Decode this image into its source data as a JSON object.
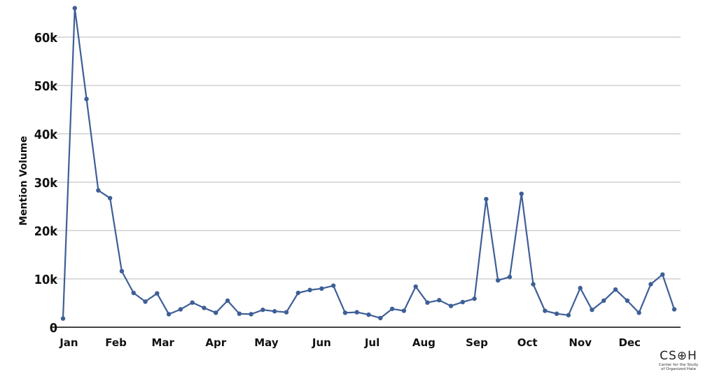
{
  "chart_data": {
    "type": "line",
    "title": "",
    "xlabel": "",
    "ylabel": "Mention Volume",
    "ylim": [
      0,
      66000
    ],
    "yticks": [
      0,
      10000,
      20000,
      30000,
      40000,
      50000,
      60000
    ],
    "ytick_labels": [
      "0",
      "10k",
      "20k",
      "30k",
      "40k",
      "50k",
      "60k"
    ],
    "xtick_labels": [
      "Jan",
      "Feb",
      "Mar",
      "Apr",
      "May",
      "Jun",
      "Jul",
      "Aug",
      "Sep",
      "Oct",
      "Nov",
      "Dec"
    ],
    "xtick_week_index": [
      0.5,
      4.5,
      8.5,
      13,
      17.3,
      22,
      26.3,
      30.7,
      35.2,
      39.5,
      44,
      48.2
    ],
    "grid": true,
    "legend": "none",
    "color": "#3e5f96",
    "series": [
      {
        "values": [
          1800,
          66000,
          47200,
          28300,
          26700,
          11600,
          7100,
          5300,
          7000,
          2700,
          3700,
          5100,
          4000,
          3000,
          5500,
          2800,
          2700,
          3600,
          3300,
          3100,
          7100,
          7700,
          8000,
          8600,
          3000,
          3100,
          2600,
          1900,
          3800,
          3400,
          8400,
          5100,
          5600,
          4400,
          5200,
          5900,
          26500,
          9700,
          10400,
          27600,
          8900,
          3400,
          2800,
          2500,
          8100,
          3600,
          5500,
          7800,
          5500,
          3000,
          8900,
          10900,
          3700
        ]
      }
    ]
  },
  "logo": {
    "mark": "CS⊕H",
    "sub_line1": "Center for the Study",
    "sub_line2": "of Organized Hate"
  }
}
